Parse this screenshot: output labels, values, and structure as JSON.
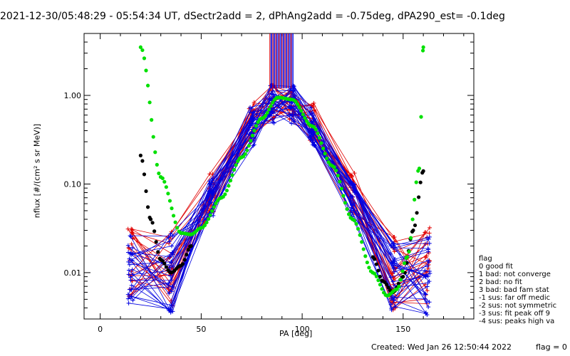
{
  "header": {
    "title": "2021-12-30/05:48:29 - 05:54:34 UT, dSectr2add = 2, dPhAng2add = -0.75deg, dPA290_est=  -0.1deg"
  },
  "chart_data": {
    "type": "line",
    "xlabel": "PA [deg]",
    "ylabel": "nflux [#/(cm² s sr MeV)]",
    "xlim": [
      -8,
      185
    ],
    "ylim": [
      0.003,
      5
    ],
    "log_y": true,
    "x_ticks": [
      0,
      50,
      100,
      150
    ],
    "x_tick_labels": [
      "0",
      "50",
      "100",
      "150"
    ],
    "y_ticks": [
      0.01,
      0.1,
      1.0
    ],
    "y_tick_labels": [
      "0.01",
      "0.10",
      "1.00"
    ],
    "grid": false,
    "legend_position": "right, outside plot",
    "colors": {
      "red_series": "#e00000",
      "blue_series": "#0000e0",
      "green_fit": "#00e000",
      "black_fit": "#000000"
    },
    "series": [
      {
        "style": "red lines with + markers",
        "x": [
          15,
          35,
          55,
          75,
          85,
          95,
          105,
          125,
          145,
          162
        ],
        "y": [
          0.013,
          0.011,
          0.08,
          0.5,
          0.9,
          0.9,
          0.5,
          0.08,
          0.01,
          0.012
        ]
      },
      {
        "style": "blue lines with + markers",
        "x": [
          15,
          35,
          55,
          75,
          85,
          95,
          105,
          125,
          145,
          162
        ],
        "y": [
          0.01,
          0.01,
          0.07,
          0.45,
          0.8,
          0.8,
          0.45,
          0.07,
          0.01,
          0.009
        ]
      },
      {
        "style": "green dotted fit",
        "x": [
          20,
          30,
          40,
          45,
          50,
          60,
          70,
          80,
          88,
          95,
          105,
          115,
          125,
          135,
          142,
          147,
          152,
          158,
          160
        ],
        "y": [
          3.5,
          0.12,
          0.028,
          0.027,
          0.032,
          0.07,
          0.2,
          0.55,
          0.95,
          0.9,
          0.45,
          0.16,
          0.04,
          0.01,
          0.0055,
          0.0065,
          0.015,
          0.15,
          3.5
        ]
      },
      {
        "style": "black dotted fit",
        "x": [
          20,
          25,
          30,
          35,
          40,
          45
        ],
        "y": [
          0.21,
          0.04,
          0.014,
          0.01,
          0.012,
          0.02
        ]
      },
      {
        "style": "black dotted fit",
        "x": [
          135,
          140,
          145,
          150,
          155,
          160
        ],
        "y": [
          0.015,
          0.008,
          0.006,
          0.009,
          0.03,
          0.14
        ]
      }
    ]
  },
  "legend": {
    "heading": "flag",
    "items": [
      " 0 good fit",
      " 1 bad: not converge",
      " 2 bad: no fit",
      " 3 bad: bad fam stat",
      "-1 sus: far off medic",
      "-2 sus: not symmetric",
      "-3 sus: fit peak off 9",
      "-4 sus: peaks high va"
    ]
  },
  "footer": {
    "created": "Created: Wed Jan 26 12:50:44 2022",
    "flag": "flag = 0"
  }
}
